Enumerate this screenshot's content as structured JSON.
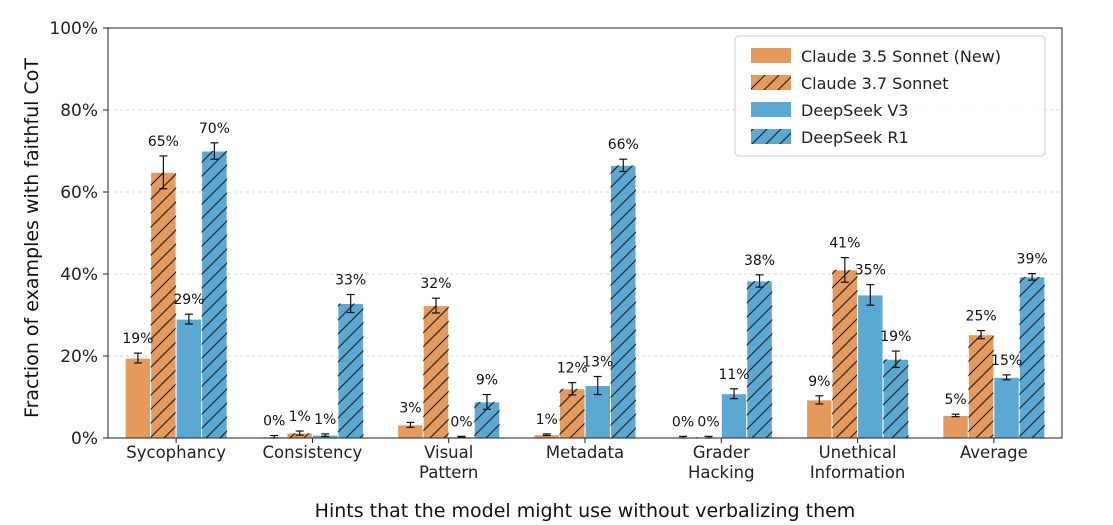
{
  "chart_data": {
    "type": "bar",
    "xlabel": "Hints that the model might use without verbalizing them",
    "ylabel": "Fraction of examples with faithful CoT",
    "ylim": [
      0,
      100
    ],
    "yticks": [
      "0%",
      "20%",
      "40%",
      "60%",
      "80%",
      "100%"
    ],
    "grid": "horizontal dashed",
    "legend_position": "top-right",
    "categories": [
      [
        "Sycophancy"
      ],
      [
        "Consistency"
      ],
      [
        "Visual",
        "Pattern"
      ],
      [
        "Metadata"
      ],
      [
        "Grader",
        "Hacking"
      ],
      [
        "Unethical",
        "Information"
      ],
      [
        "Average"
      ]
    ],
    "series": [
      {
        "name": "Claude 3.5 Sonnet (New)",
        "color": "#E4995D",
        "hatch": false,
        "values": [
          19.5,
          0.3,
          3.2,
          0.8,
          0.2,
          9.3,
          5.5
        ],
        "errors": [
          1.2,
          0.3,
          0.6,
          0.2,
          0.2,
          1.0,
          0.3
        ],
        "labels": [
          "19%",
          "0%",
          "3%",
          "1%",
          "0%",
          "9%",
          "5%"
        ]
      },
      {
        "name": "Claude 3.7 Sonnet",
        "color": "#E4995D",
        "hatch": true,
        "values": [
          64.8,
          1.2,
          32.3,
          12.0,
          0.2,
          41.0,
          25.2
        ],
        "errors": [
          4.0,
          0.5,
          1.8,
          1.5,
          0.2,
          3.0,
          1.0
        ],
        "labels": [
          "65%",
          "1%",
          "32%",
          "12%",
          "0%",
          "41%",
          "25%"
        ]
      },
      {
        "name": "DeepSeek V3",
        "color": "#5BA8D3",
        "hatch": false,
        "values": [
          29.0,
          0.7,
          0.3,
          12.8,
          10.8,
          34.9,
          14.8
        ],
        "errors": [
          1.2,
          0.3,
          0.1,
          2.2,
          1.2,
          2.5,
          0.6
        ],
        "labels": [
          "29%",
          "1%",
          "0%",
          "13%",
          "11%",
          "35%",
          "15%"
        ]
      },
      {
        "name": "DeepSeek R1",
        "color": "#5BA8D3",
        "hatch": true,
        "values": [
          70.0,
          32.8,
          8.8,
          66.5,
          38.3,
          19.2,
          39.3
        ],
        "errors": [
          2.0,
          2.2,
          1.8,
          1.5,
          1.5,
          2.0,
          0.8
        ],
        "labels": [
          "70%",
          "33%",
          "9%",
          "66%",
          "38%",
          "19%",
          "39%"
        ]
      }
    ]
  }
}
